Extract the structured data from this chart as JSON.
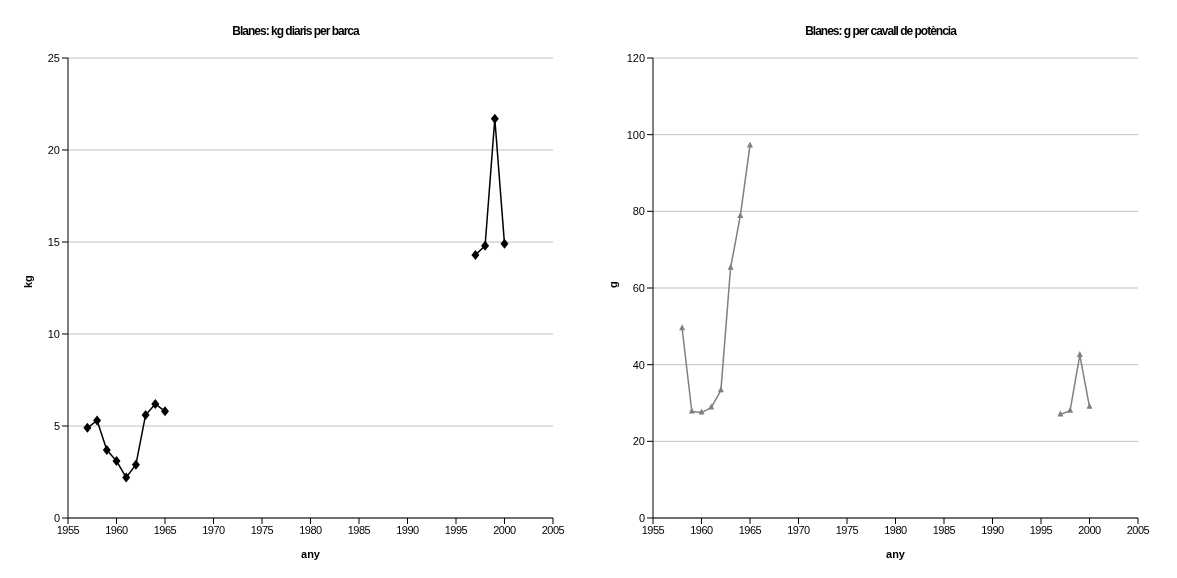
{
  "chart_data": [
    {
      "type": "line",
      "title": "Blanes: kg diaris per barca",
      "xlabel": "any",
      "ylabel": "kg",
      "marker": "diamond",
      "grid": "y",
      "xlim": [
        1955,
        2005
      ],
      "xticks": [
        1955,
        1960,
        1965,
        1970,
        1975,
        1980,
        1985,
        1990,
        1995,
        2000,
        2005
      ],
      "ylim": [
        0,
        25
      ],
      "yticks": [
        0,
        5,
        10,
        15,
        20,
        25
      ],
      "series": [
        {
          "color": "#000000",
          "x": [
            1957,
            1958,
            1959,
            1960,
            1961,
            1962,
            1963,
            1964,
            1965
          ],
          "values": [
            4.9,
            5.3,
            3.7,
            3.1,
            2.2,
            2.9,
            5.6,
            6.2,
            5.8
          ]
        },
        {
          "color": "#000000",
          "x": [
            1997,
            1998,
            1999,
            2000
          ],
          "values": [
            14.3,
            14.8,
            21.7,
            14.9
          ]
        }
      ]
    },
    {
      "type": "line",
      "title": "Blanes: g per cavall de potència",
      "xlabel": "any",
      "ylabel": "g",
      "marker": "triangle",
      "grid": "y",
      "xlim": [
        1955,
        2005
      ],
      "xticks": [
        1955,
        1960,
        1965,
        1970,
        1975,
        1980,
        1985,
        1990,
        1995,
        2000,
        2005
      ],
      "ylim": [
        0,
        120
      ],
      "yticks": [
        0,
        20,
        40,
        60,
        80,
        100,
        120
      ],
      "series": [
        {
          "color": "#808080",
          "x": [
            1958,
            1959,
            1960,
            1961,
            1962,
            1963,
            1964,
            1965
          ],
          "values": [
            49.5,
            27.8,
            27.5,
            28.8,
            33.3,
            65.3,
            78.8,
            97.2
          ]
        },
        {
          "color": "#808080",
          "x": [
            1997,
            1998,
            1999,
            2000
          ],
          "values": [
            27,
            28,
            42.5,
            29
          ]
        }
      ]
    }
  ]
}
